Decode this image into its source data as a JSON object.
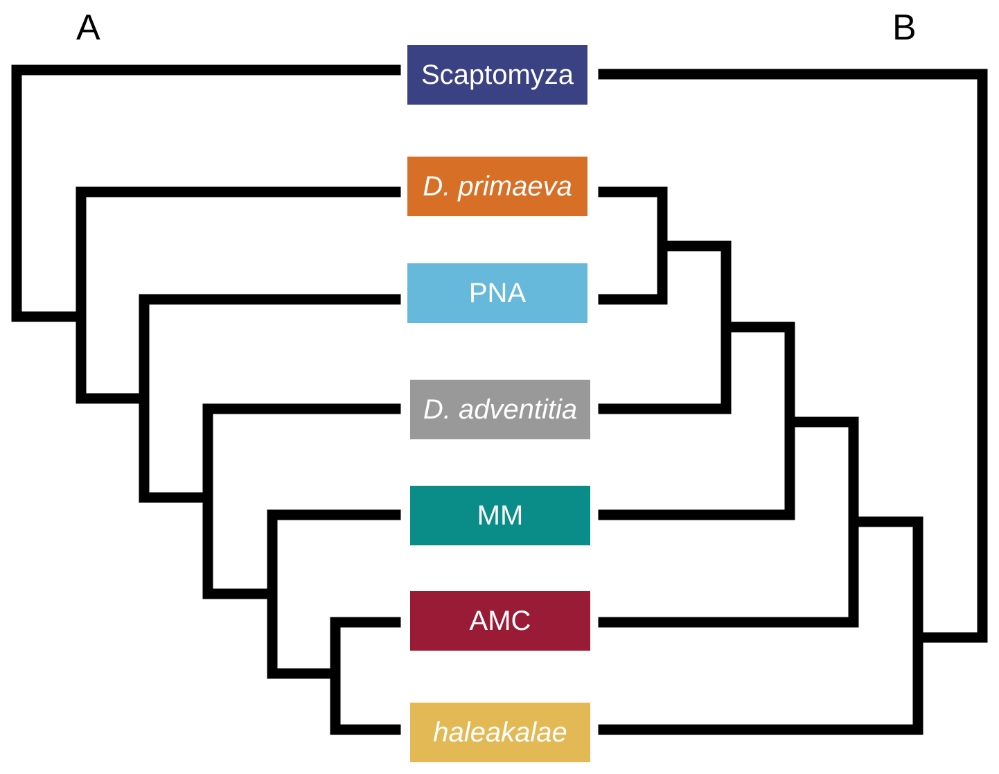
{
  "panels": {
    "left_label": "A",
    "right_label": "B"
  },
  "line_color": "#000000",
  "taxa": [
    {
      "id": "scaptomyza",
      "label": "Scaptomyza",
      "italic": false,
      "color": "#3a4283"
    },
    {
      "id": "d-primaeva",
      "label": "D. primaeva",
      "italic": true,
      "color": "#d86f27"
    },
    {
      "id": "pna",
      "label": "PNA",
      "italic": false,
      "color": "#66b9da"
    },
    {
      "id": "d-adventitia",
      "label": "D. adventitia",
      "italic": true,
      "color": "#999999"
    },
    {
      "id": "mm",
      "label": "MM",
      "italic": false,
      "color": "#0a8c89"
    },
    {
      "id": "amc",
      "label": "AMC",
      "italic": false,
      "color": "#991b36"
    },
    {
      "id": "haleakalae",
      "label": "haleakalae",
      "italic": true,
      "color": "#e3b955"
    }
  ],
  "tree_a_topology": "(Scaptomyza,(D. primaeva,(PNA,(D. adventitia,(MM,(AMC,haleakalae))))))",
  "tree_b_topology": "(Scaptomyza,((((D. primaeva,PNA),D. adventitia),MM),AMC),haleakalae))"
}
